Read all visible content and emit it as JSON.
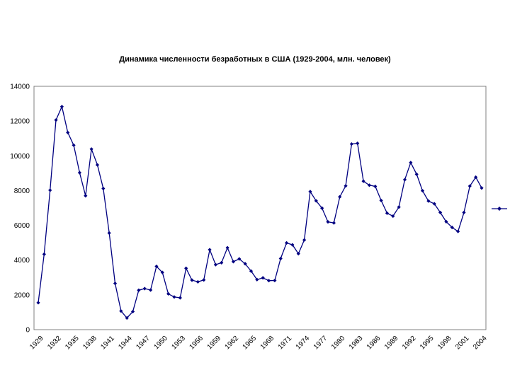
{
  "chart_data": {
    "type": "line",
    "title": "Динамика численности безработных в США (1929-2004, млн. человек)",
    "xlabel": "",
    "ylabel": "",
    "ylim": [
      0,
      14000
    ],
    "yticks": [
      0,
      2000,
      4000,
      6000,
      8000,
      10000,
      12000,
      14000
    ],
    "xticks": [
      1929,
      1932,
      1935,
      1938,
      1941,
      1944,
      1947,
      1950,
      1953,
      1956,
      1959,
      1962,
      1965,
      1968,
      1971,
      1974,
      1977,
      1980,
      1983,
      1986,
      1989,
      1992,
      1995,
      1998,
      2001,
      2004
    ],
    "grid": false,
    "legend": "right",
    "series_color": "#000080",
    "x": [
      1929,
      1930,
      1931,
      1932,
      1933,
      1934,
      1935,
      1936,
      1937,
      1938,
      1939,
      1940,
      1941,
      1942,
      1943,
      1944,
      1945,
      1946,
      1947,
      1948,
      1949,
      1950,
      1951,
      1952,
      1953,
      1954,
      1955,
      1956,
      1957,
      1958,
      1959,
      1960,
      1961,
      1962,
      1963,
      1964,
      1965,
      1966,
      1967,
      1968,
      1969,
      1970,
      1971,
      1972,
      1973,
      1974,
      1975,
      1976,
      1977,
      1978,
      1979,
      1980,
      1981,
      1982,
      1983,
      1984,
      1985,
      1986,
      1987,
      1988,
      1989,
      1990,
      1991,
      1992,
      1993,
      1994,
      1995,
      1996,
      1997,
      1998,
      1999,
      2000,
      2001,
      2002,
      2003,
      2004
    ],
    "series": [
      {
        "values": [
          1550,
          4340,
          8020,
          12060,
          12830,
          11340,
          10610,
          9030,
          7700,
          10390,
          9480,
          8120,
          5560,
          2660,
          1070,
          670,
          1040,
          2270,
          2360,
          2280,
          3640,
          3290,
          2060,
          1880,
          1830,
          3530,
          2850,
          2750,
          2860,
          4600,
          3740,
          3850,
          4710,
          3910,
          4070,
          3790,
          3370,
          2880,
          2980,
          2820,
          2830,
          4090,
          4990,
          4880,
          4370,
          5160,
          7940,
          7410,
          6990,
          6200,
          6140,
          7640,
          8270,
          10680,
          10720,
          8540,
          8310,
          8240,
          7430,
          6700,
          6530,
          7050,
          8630,
          9610,
          8940,
          7990,
          7400,
          7240,
          6740,
          6210,
          5880,
          5650,
          6740,
          8260,
          8770,
          8150
        ]
      }
    ]
  }
}
